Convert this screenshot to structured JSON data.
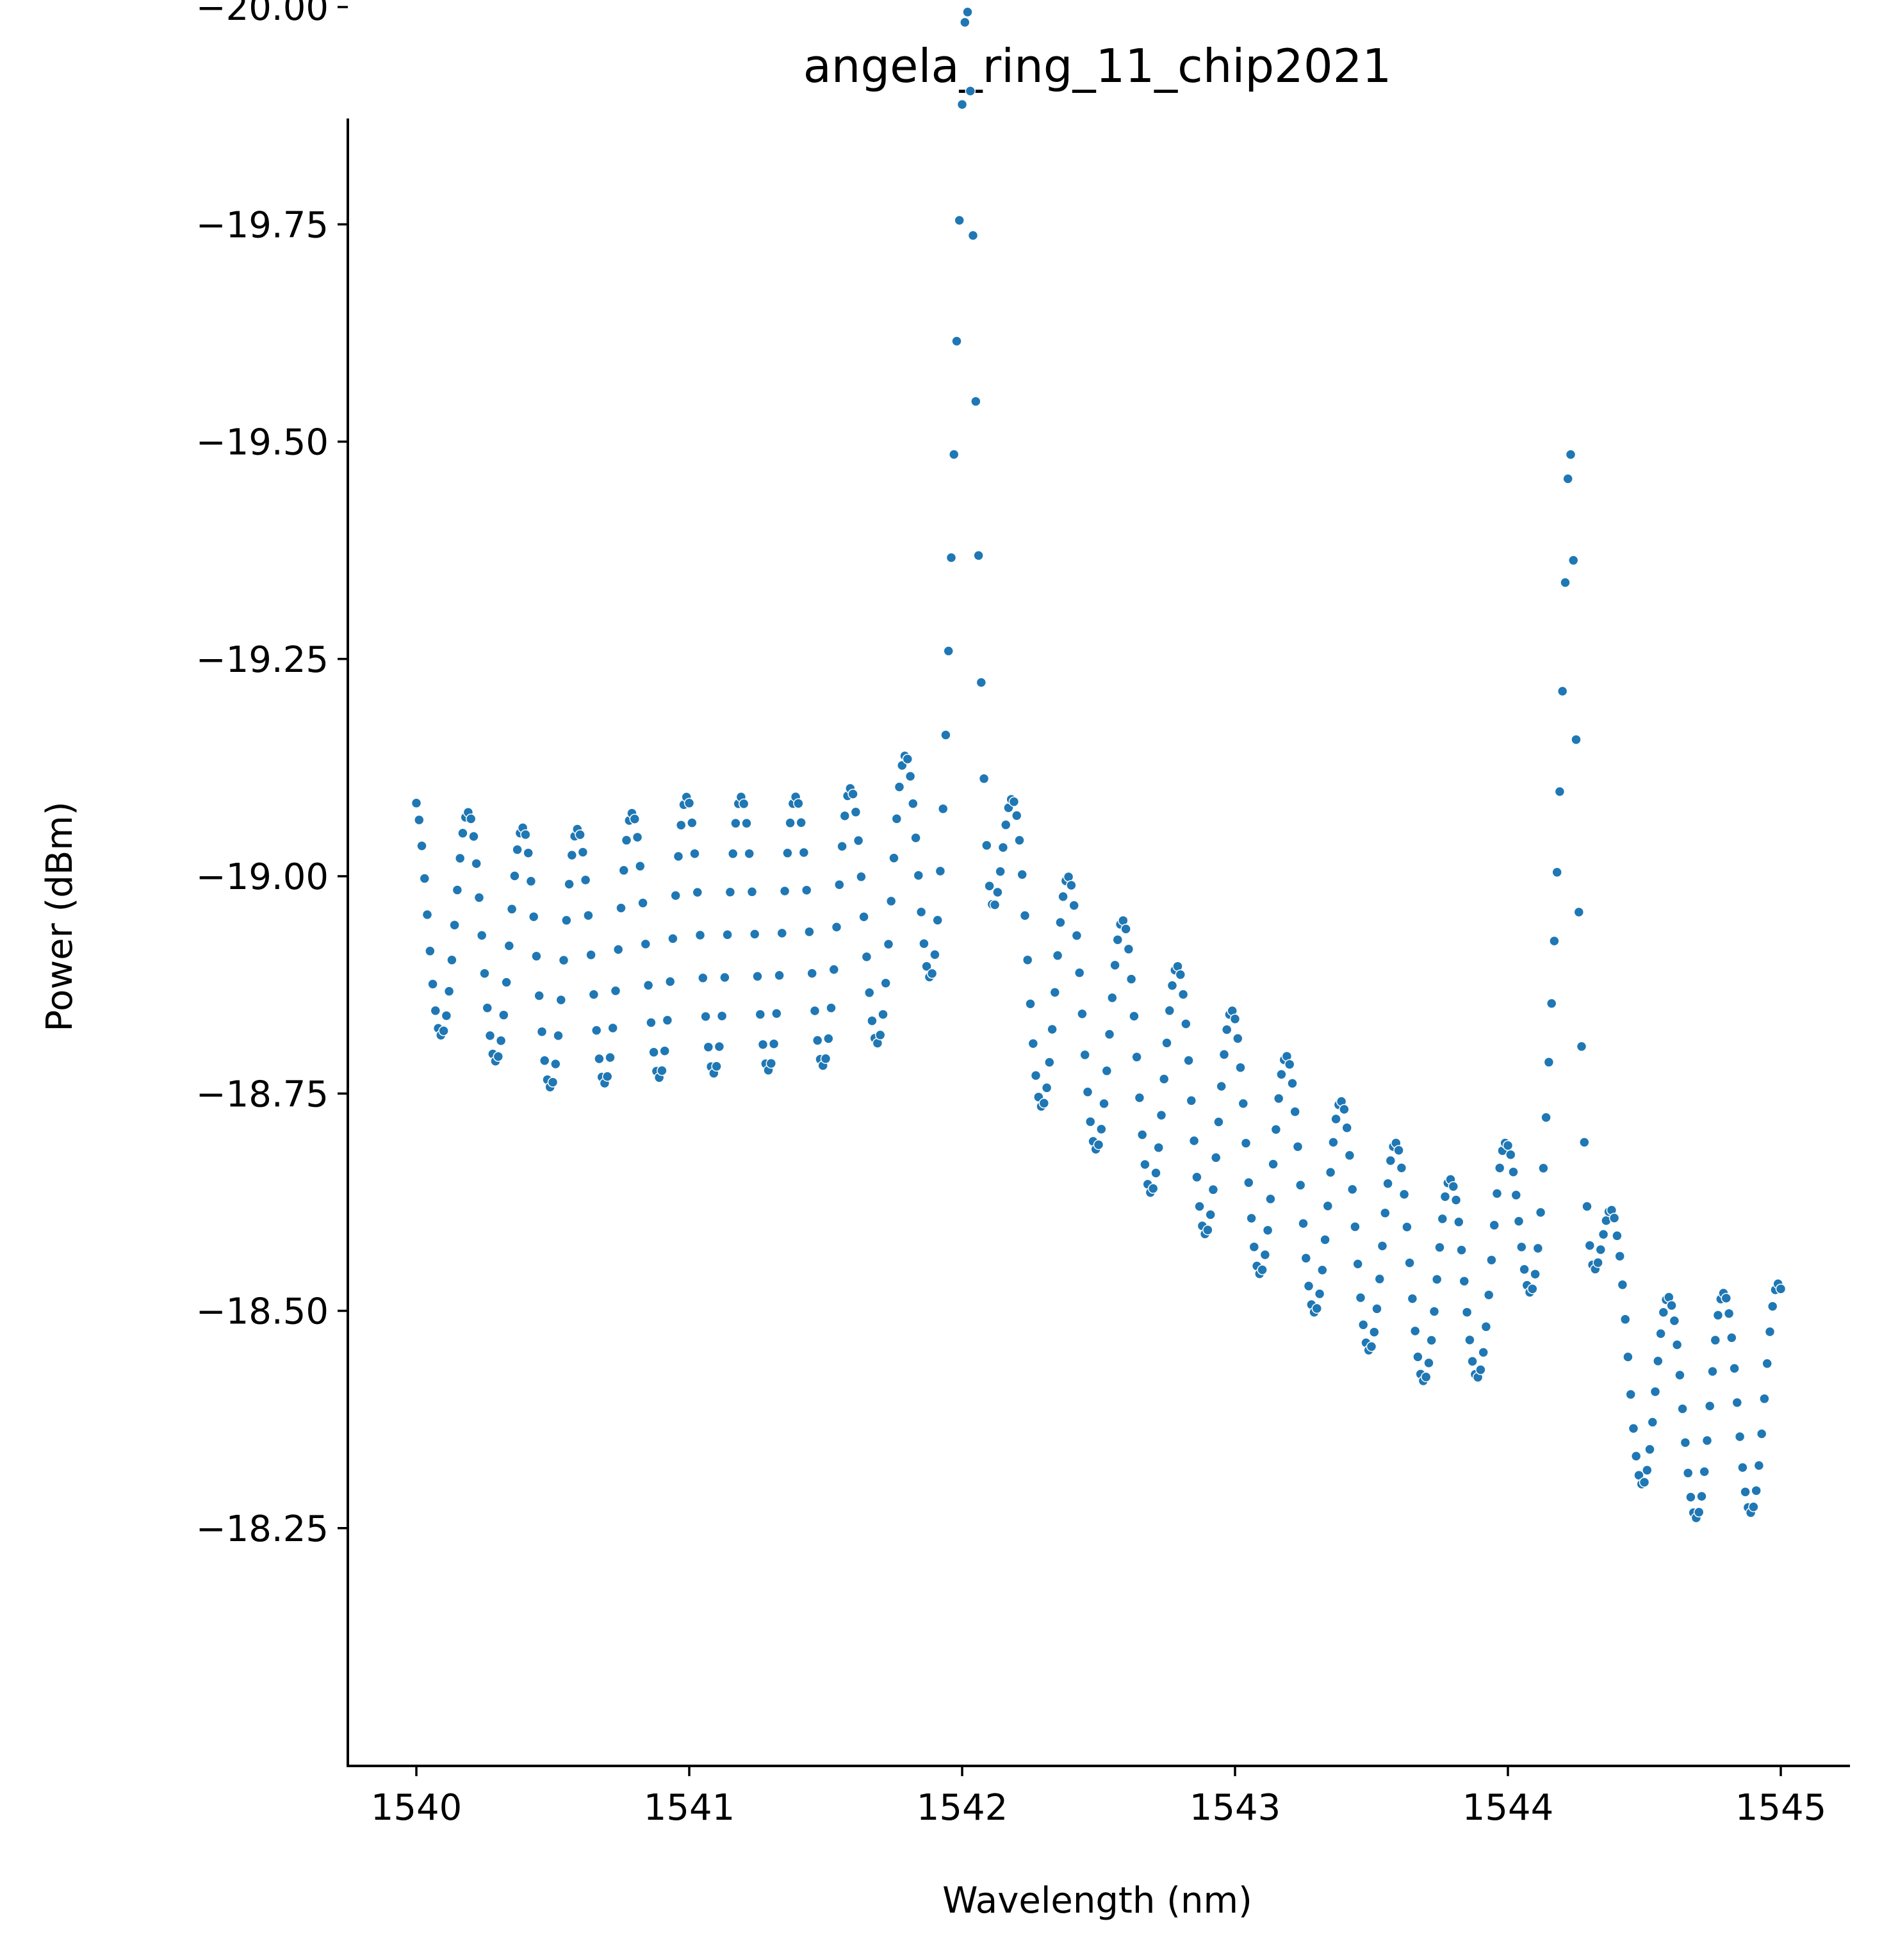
{
  "chart_data": {
    "type": "scatter",
    "title": "angela_ring_11_chip2021",
    "xlabel": "Wavelength (nm)",
    "ylabel": "Power (dBm)",
    "xlim": [
      1539.75,
      1545.25
    ],
    "ylim": [
      -20.02,
      -18.13
    ],
    "xticks": [
      1540,
      1541,
      1542,
      1543,
      1544,
      1545
    ],
    "xtick_labels": [
      "1540",
      "1541",
      "1542",
      "1543",
      "1544",
      "1545"
    ],
    "yticks": [
      -20.0,
      -19.75,
      -19.5,
      -19.25,
      -19.0,
      -18.75,
      -18.5,
      -18.25
    ],
    "ytick_labels": [
      "−20.00",
      "−19.75",
      "−19.50",
      "−19.25",
      "−19.00",
      "−18.75",
      "−18.50",
      "−18.25"
    ],
    "grid": false,
    "marker_color": "#1f77b4",
    "wavelength_range": [
      1540.0,
      1545.0
    ],
    "point_count": 501,
    "description_of_shape": "",
    "series": [
      {
        "baseline_knots": [
          [
            1540.0,
            -18.96
          ],
          [
            1540.5,
            -18.9
          ],
          [
            1541.0,
            -18.93
          ],
          [
            1541.5,
            -18.93
          ],
          [
            1541.8,
            -18.95
          ],
          [
            1542.2,
            -18.87
          ],
          [
            1542.5,
            -18.82
          ],
          [
            1543.0,
            -18.7
          ],
          [
            1543.5,
            -18.58
          ],
          [
            1543.8,
            -18.52
          ],
          [
            1544.0,
            -18.56
          ],
          [
            1544.2,
            -18.66
          ],
          [
            1544.4,
            -18.44
          ],
          [
            1544.6,
            -18.38
          ],
          [
            1545.0,
            -18.4
          ]
        ],
        "ripple_amplitude_knots": [
          [
            1540.0,
            0.13
          ],
          [
            1541.0,
            0.16
          ],
          [
            1542.0,
            0.15
          ],
          [
            1543.0,
            0.14
          ],
          [
            1544.0,
            0.12
          ],
          [
            1545.0,
            0.13
          ]
        ],
        "ripple_period_nm": 0.2,
        "ripple_phase_nm": 0.09,
        "dips": [
          {
            "center": 1542.02,
            "depth": 1.0,
            "width": 0.045
          },
          {
            "center": 1544.23,
            "depth": 0.82,
            "width": 0.032
          }
        ]
      }
    ]
  }
}
